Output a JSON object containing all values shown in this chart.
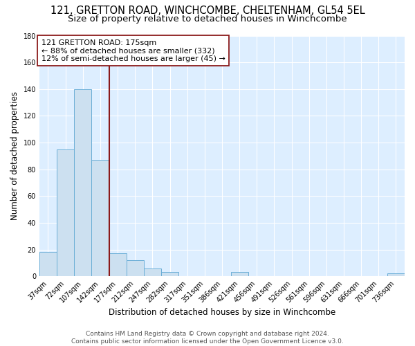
{
  "title": "121, GRETTON ROAD, WINCHCOMBE, CHELTENHAM, GL54 5EL",
  "subtitle": "Size of property relative to detached houses in Winchcombe",
  "xlabel": "Distribution of detached houses by size in Winchcombe",
  "ylabel": "Number of detached properties",
  "bar_labels": [
    "37sqm",
    "72sqm",
    "107sqm",
    "142sqm",
    "177sqm",
    "212sqm",
    "247sqm",
    "282sqm",
    "317sqm",
    "351sqm",
    "386sqm",
    "421sqm",
    "456sqm",
    "491sqm",
    "526sqm",
    "561sqm",
    "596sqm",
    "631sqm",
    "666sqm",
    "701sqm",
    "736sqm"
  ],
  "bar_values": [
    18,
    95,
    140,
    87,
    17,
    12,
    6,
    3,
    0,
    0,
    0,
    3,
    0,
    0,
    0,
    0,
    0,
    0,
    0,
    0,
    2
  ],
  "bar_color": "#cce0f0",
  "bar_edge_color": "#6aaed6",
  "ylim": [
    0,
    180
  ],
  "yticks": [
    0,
    20,
    40,
    60,
    80,
    100,
    120,
    140,
    160,
    180
  ],
  "property_label": "121 GRETTON ROAD: 175sqm",
  "pct_smaller": 88,
  "count_smaller": 332,
  "pct_larger_semi": 12,
  "count_larger_semi": 45,
  "vline_color": "#8b1a1a",
  "annotation_box_edge": "#8b1a1a",
  "footer_line1": "Contains HM Land Registry data © Crown copyright and database right 2024.",
  "footer_line2": "Contains public sector information licensed under the Open Government Licence v3.0.",
  "figure_bg": "#ffffff",
  "plot_bg": "#ddeeff",
  "grid_color": "#ffffff",
  "title_fontsize": 10.5,
  "subtitle_fontsize": 9.5,
  "axis_label_fontsize": 8.5,
  "tick_fontsize": 7,
  "annot_fontsize": 8,
  "footer_fontsize": 6.5
}
